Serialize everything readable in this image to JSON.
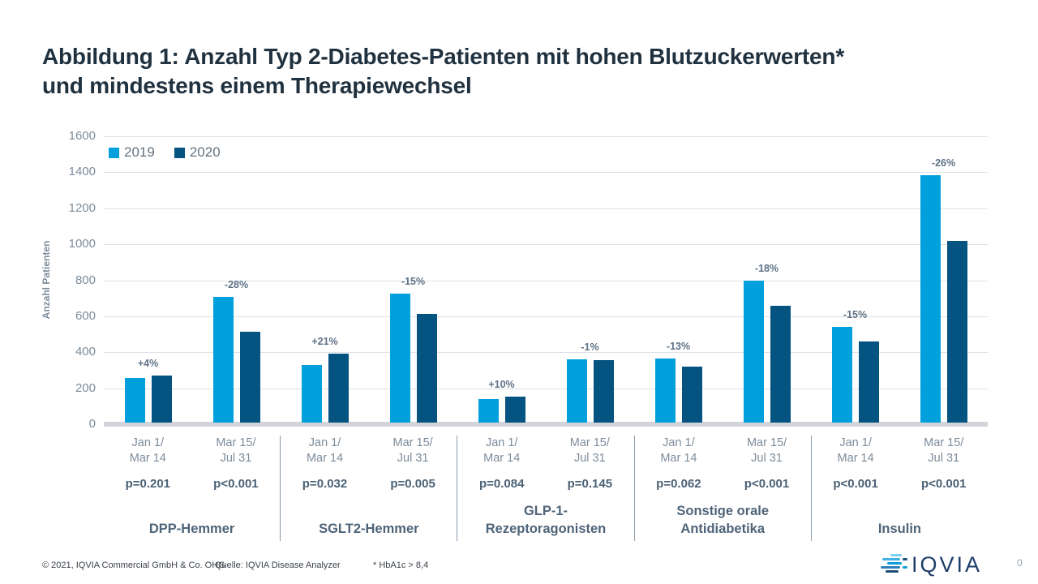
{
  "title": {
    "line1": "Abbildung 1: Anzahl Typ 2-Diabetes-Patienten mit hohen Blutzuckerwerten*",
    "line2": "und mindestens einem Therapiewechsel"
  },
  "chart_data": {
    "type": "bar",
    "title": "Anzahl Typ 2-Diabetes-Patienten mit hohen Blutzuckerwerten und mindestens einem Therapiewechsel",
    "ylabel": "Anzahl Patienten",
    "ylim": [
      0,
      1600
    ],
    "ytick_step": 200,
    "grid": true,
    "legend_position": "top-left",
    "series": [
      "2019",
      "2020"
    ],
    "colors": {
      "2019": "#00A0DC",
      "2020": "#045380"
    },
    "groups": [
      {
        "label_lines": [
          "DPP-Hemmer"
        ],
        "periods": [
          {
            "date_lines": [
              "Jan 1/",
              "Mar 14"
            ],
            "values": {
              "2019": 250,
              "2020": 260
            },
            "pct": "+4%",
            "p": "p=0.201"
          },
          {
            "date_lines": [
              "Mar 15/",
              "Jul 31"
            ],
            "values": {
              "2019": 700,
              "2020": 505
            },
            "pct": "-28%",
            "p": "p<0.001"
          }
        ]
      },
      {
        "label_lines": [
          "SGLT2-Hemmer"
        ],
        "periods": [
          {
            "date_lines": [
              "Jan 1/",
              "Mar 14"
            ],
            "values": {
              "2019": 320,
              "2020": 385
            },
            "pct": "+21%",
            "p": "p=0.032"
          },
          {
            "date_lines": [
              "Mar 15/",
              "Jul 31"
            ],
            "values": {
              "2019": 715,
              "2020": 605
            },
            "pct": "-15%",
            "p": "p=0.005"
          }
        ]
      },
      {
        "label_lines": [
          "GLP-1-",
          "Rezeptoragonisten"
        ],
        "periods": [
          {
            "date_lines": [
              "Jan 1/",
              "Mar 14"
            ],
            "values": {
              "2019": 130,
              "2020": 143
            },
            "pct": "+10%",
            "p": "p=0.084"
          },
          {
            "date_lines": [
              "Mar 15/",
              "Jul 31"
            ],
            "values": {
              "2019": 350,
              "2020": 345
            },
            "pct": "-1%",
            "p": "p=0.145"
          }
        ]
      },
      {
        "label_lines": [
          "Sonstige orale",
          "Antidiabetika"
        ],
        "periods": [
          {
            "date_lines": [
              "Jan 1/",
              "Mar 14"
            ],
            "values": {
              "2019": 355,
              "2020": 310
            },
            "pct": "-13%",
            "p": "p=0.062"
          },
          {
            "date_lines": [
              "Mar 15/",
              "Jul 31"
            ],
            "values": {
              "2019": 790,
              "2020": 650
            },
            "pct": "-18%",
            "p": "p<0.001"
          }
        ]
      },
      {
        "label_lines": [
          "Insulin"
        ],
        "periods": [
          {
            "date_lines": [
              "Jan 1/",
              "Mar 14"
            ],
            "values": {
              "2019": 530,
              "2020": 450
            },
            "pct": "-15%",
            "p": "p<0.001"
          },
          {
            "date_lines": [
              "Mar 15/",
              "Jul 31"
            ],
            "values": {
              "2019": 1375,
              "2020": 1010
            },
            "pct": "-26%",
            "p": "p<0.001"
          }
        ]
      }
    ]
  },
  "footer": {
    "copyright": "© 2021, IQVIA Commercial GmbH & Co. OHG",
    "source": "Quelle: IQVIA Disease Analyzer",
    "footnote": "* HbA1c > 8,4",
    "page_number": "0"
  },
  "logo": {
    "text": "IQVIA"
  }
}
